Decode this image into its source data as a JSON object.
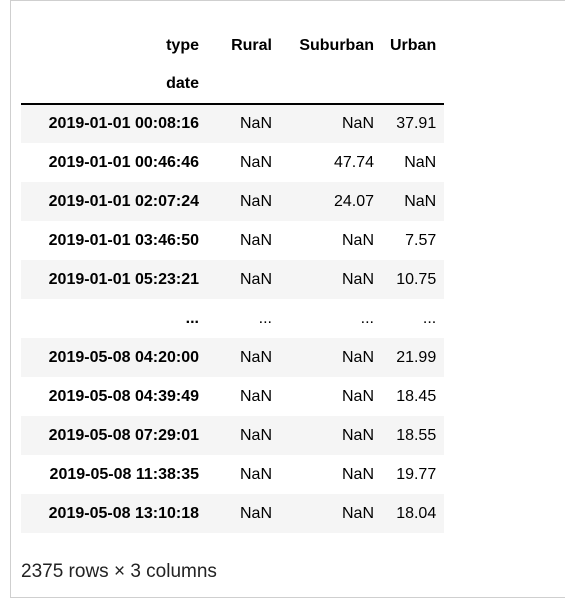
{
  "table": {
    "columns_name": "type",
    "index_name": "date",
    "columns": [
      "Rural",
      "Suburban",
      "Urban"
    ],
    "rows": [
      {
        "date": "2019-01-01 00:08:16",
        "rural": "NaN",
        "suburban": "NaN",
        "urban": "37.91"
      },
      {
        "date": "2019-01-01 00:46:46",
        "rural": "NaN",
        "suburban": "47.74",
        "urban": "NaN"
      },
      {
        "date": "2019-01-01 02:07:24",
        "rural": "NaN",
        "suburban": "24.07",
        "urban": "NaN"
      },
      {
        "date": "2019-01-01 03:46:50",
        "rural": "NaN",
        "suburban": "NaN",
        "urban": "7.57"
      },
      {
        "date": "2019-01-01 05:23:21",
        "rural": "NaN",
        "suburban": "NaN",
        "urban": "10.75"
      },
      {
        "date": "...",
        "rural": "...",
        "suburban": "...",
        "urban": "..."
      },
      {
        "date": "2019-05-08 04:20:00",
        "rural": "NaN",
        "suburban": "NaN",
        "urban": "21.99"
      },
      {
        "date": "2019-05-08 04:39:49",
        "rural": "NaN",
        "suburban": "NaN",
        "urban": "18.45"
      },
      {
        "date": "2019-05-08 07:29:01",
        "rural": "NaN",
        "suburban": "NaN",
        "urban": "18.55"
      },
      {
        "date": "2019-05-08 11:38:35",
        "rural": "NaN",
        "suburban": "NaN",
        "urban": "19.77"
      },
      {
        "date": "2019-05-08 13:10:18",
        "rural": "NaN",
        "suburban": "NaN",
        "urban": "18.04"
      }
    ]
  },
  "footer": "2375 rows × 3 columns"
}
